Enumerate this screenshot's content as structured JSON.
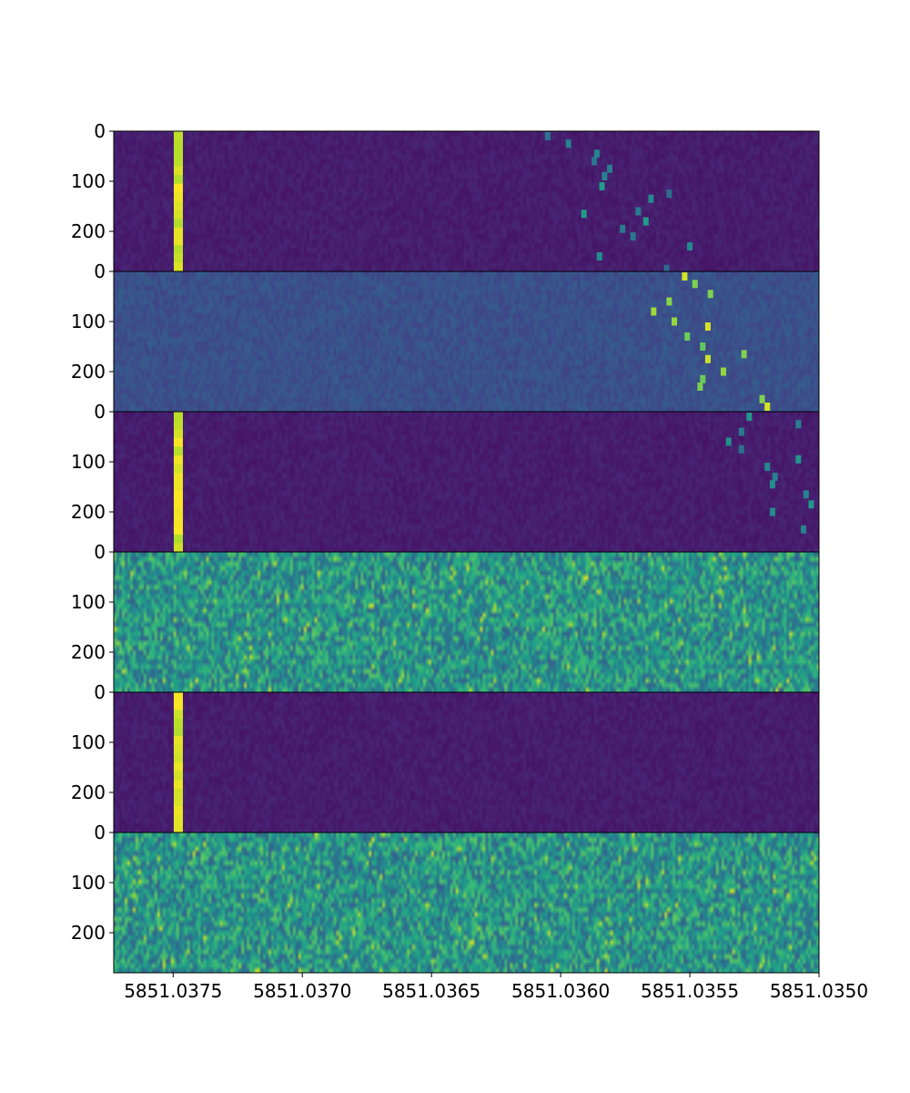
{
  "chart_data": {
    "type": "heatmap",
    "colormap": "viridis",
    "colors": {
      "viridis_stops": [
        "#440154",
        "#482878",
        "#3e4989",
        "#31688e",
        "#26828e",
        "#1f9e89",
        "#35b779",
        "#6ece58",
        "#b5de2b",
        "#fde725"
      ],
      "frame": "#000000"
    },
    "x": {
      "range": [
        5851.03773,
        5851.035
      ],
      "tick_values": [
        5851.0375,
        5851.037,
        5851.0365,
        5851.036,
        5851.0355,
        5851.035
      ],
      "tick_labels": [
        "5851.0375",
        "5851.0370",
        "5851.0365",
        "5851.0360",
        "5851.0355",
        "5851.0350"
      ]
    },
    "y": {
      "range": [
        0,
        280
      ],
      "tick_values": [
        0,
        100,
        200
      ],
      "tick_labels": [
        "0",
        "100",
        "200"
      ]
    },
    "panels": [
      {
        "background": "low",
        "steady_signal": {
          "x": 5851.03748,
          "level": "high"
        },
        "drifting_signal": [
          [
            5851.03605,
            10
          ],
          [
            5851.03597,
            25
          ],
          [
            5851.03587,
            60
          ],
          [
            5851.03586,
            45
          ],
          [
            5851.03584,
            110
          ],
          [
            5851.03583,
            90
          ],
          [
            5851.03581,
            75
          ],
          [
            5851.03576,
            195
          ],
          [
            5851.03572,
            210
          ],
          [
            5851.0357,
            160
          ],
          [
            5851.03567,
            180
          ],
          [
            5851.03565,
            135
          ],
          [
            5851.03559,
            275
          ],
          [
            5851.03558,
            125
          ],
          [
            5851.03591,
            165
          ],
          [
            5851.03585,
            250
          ],
          [
            5851.0355,
            230
          ]
        ]
      },
      {
        "background": "medium-low",
        "steady_signal": null,
        "drifting_signal": [
          [
            5851.03552,
            10
          ],
          [
            5851.03548,
            25
          ],
          [
            5851.03542,
            45
          ],
          [
            5851.03558,
            60
          ],
          [
            5851.03564,
            80
          ],
          [
            5851.03556,
            100
          ],
          [
            5851.03543,
            110
          ],
          [
            5851.03551,
            130
          ],
          [
            5851.03545,
            150
          ],
          [
            5851.03543,
            175
          ],
          [
            5851.03529,
            165
          ],
          [
            5851.03537,
            200
          ],
          [
            5851.03545,
            215
          ],
          [
            5851.03546,
            230
          ],
          [
            5851.03522,
            255
          ],
          [
            5851.0352,
            270
          ]
        ]
      },
      {
        "background": "low",
        "steady_signal": {
          "x": 5851.03748,
          "level": "high"
        },
        "drifting_signal": [
          [
            5851.03527,
            10
          ],
          [
            5851.0353,
            40
          ],
          [
            5851.03535,
            60
          ],
          [
            5851.0353,
            75
          ],
          [
            5851.03508,
            25
          ],
          [
            5851.0352,
            110
          ],
          [
            5851.03517,
            130
          ],
          [
            5851.03518,
            145
          ],
          [
            5851.03508,
            95
          ],
          [
            5851.03505,
            165
          ],
          [
            5851.03503,
            185
          ],
          [
            5851.03518,
            200
          ],
          [
            5851.03506,
            235
          ]
        ]
      },
      {
        "background": "high-noise",
        "steady_signal": null,
        "drifting_signal": []
      },
      {
        "background": "low",
        "steady_signal": {
          "x": 5851.03748,
          "level": "high"
        },
        "drifting_signal": []
      },
      {
        "background": "high-noise",
        "steady_signal": null,
        "drifting_signal": []
      }
    ]
  }
}
